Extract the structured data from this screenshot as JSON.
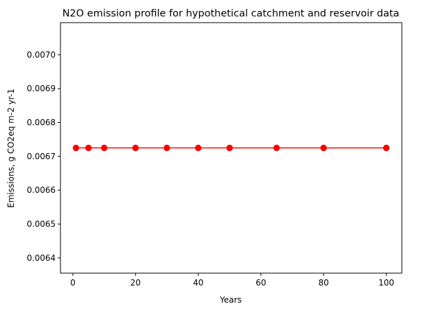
{
  "chart_data": {
    "type": "line",
    "title": "N2O emission profile for hypothetical catchment and reservoir data",
    "xlabel": "Years",
    "ylabel": "Emissions, g CO2eq m-2 yr-1",
    "x": [
      1,
      5,
      10,
      20,
      30,
      40,
      50,
      65,
      80,
      100
    ],
    "series": [
      {
        "values": [
          0.006725,
          0.006725,
          0.006725,
          0.006725,
          0.006725,
          0.006725,
          0.006725,
          0.006725,
          0.006725,
          0.006725
        ],
        "color": "#ff0000",
        "marker": "circle"
      }
    ],
    "xlim": [
      -3.95,
      104.95
    ],
    "ylim": [
      0.006355,
      0.007095
    ],
    "xticks": [
      0,
      20,
      40,
      60,
      80,
      100
    ],
    "xtick_labels": [
      "0",
      "20",
      "40",
      "60",
      "80",
      "100"
    ],
    "yticks": [
      0.0064,
      0.0065,
      0.0066,
      0.0067,
      0.0068,
      0.0069,
      0.007
    ],
    "ytick_labels": [
      "0.0064",
      "0.0065",
      "0.0066",
      "0.0067",
      "0.0068",
      "0.0069",
      "0.0070"
    ],
    "grid": false,
    "legend": "none"
  }
}
